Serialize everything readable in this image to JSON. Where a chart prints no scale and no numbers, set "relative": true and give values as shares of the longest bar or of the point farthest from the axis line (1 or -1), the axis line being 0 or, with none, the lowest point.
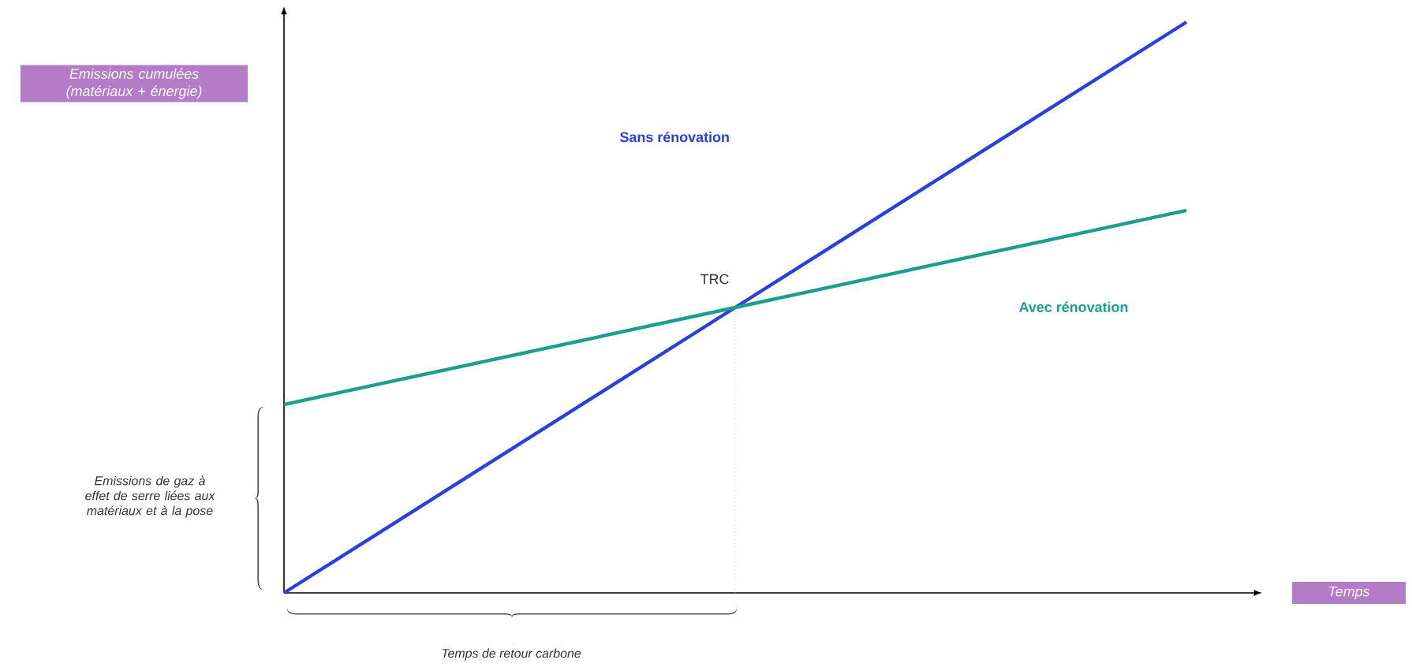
{
  "chart_data": {
    "type": "line",
    "relative": true,
    "categories": [
      null,
      null,
      null
    ],
    "marker": "none",
    "series": [
      {
        "name": "Sans rénovation",
        "color": "#2b3ee0",
        "values": [
          0,
          0.5,
          1
        ]
      },
      {
        "name": "Avec rénovation",
        "color": "#1a9e8f",
        "values": [
          0.33,
          0.5,
          0.67
        ]
      }
    ],
    "annotations": [
      "TRC",
      "Emissions de gaz à effet de serre liées aux matériaux et à la pose",
      "Temps de retour carbone",
      "Emissions cumulées (matériaux + énergie)",
      "Temps"
    ]
  }
}
